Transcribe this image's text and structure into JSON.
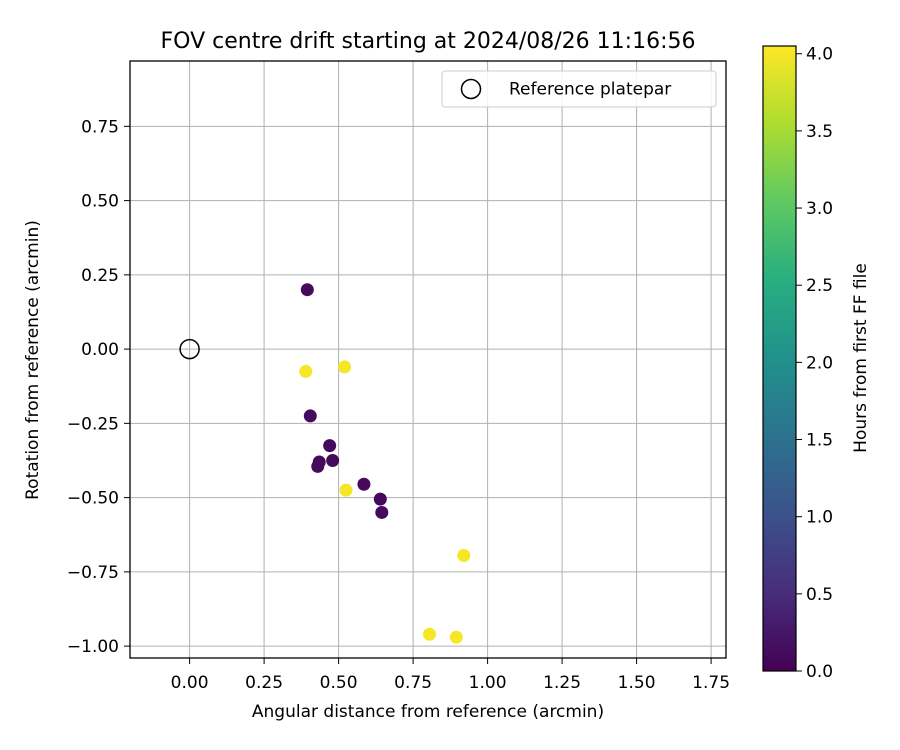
{
  "chart_data": {
    "type": "scatter",
    "title": "FOV centre drift starting at 2024/08/26 11:16:56",
    "xlabel": "Angular distance from reference (arcmin)",
    "ylabel": "Rotation from reference (arcmin)",
    "xlim": [
      -0.2,
      1.8
    ],
    "ylim": [
      -1.04,
      0.97
    ],
    "x_ticks": [
      0.0,
      0.25,
      0.5,
      0.75,
      1.0,
      1.25,
      1.5,
      1.75
    ],
    "x_tick_labels": [
      "0.00",
      "0.25",
      "0.50",
      "0.75",
      "1.00",
      "1.25",
      "1.50",
      "1.75"
    ],
    "y_ticks": [
      0.75,
      0.5,
      0.25,
      0.0,
      -0.25,
      -0.5,
      -0.75,
      -1.0
    ],
    "y_tick_labels": [
      "0.75",
      "0.50",
      "0.25",
      "0.00",
      "−0.25",
      "−0.50",
      "−0.75",
      "−1.00"
    ],
    "grid": true,
    "legend_position": "top-right",
    "legend": [
      {
        "label": "Reference platepar",
        "marker": "open-circle"
      }
    ],
    "reference_point": {
      "x": 0.0,
      "y": 0.0
    },
    "colorbar": {
      "label": "Hours from first FF file",
      "colormap": "viridis",
      "range": [
        0.0,
        4.05
      ],
      "ticks": [
        0.0,
        0.5,
        1.0,
        1.5,
        2.0,
        2.5,
        3.0,
        3.5,
        4.0
      ],
      "tick_labels": [
        "0.0",
        "0.5",
        "1.0",
        "1.5",
        "2.0",
        "2.5",
        "3.0",
        "3.5",
        "4.0"
      ]
    },
    "points": [
      {
        "x": 0.395,
        "y": 0.2,
        "hours": 0.1
      },
      {
        "x": 0.405,
        "y": -0.225,
        "hours": 0.1
      },
      {
        "x": 0.47,
        "y": -0.325,
        "hours": 0.1
      },
      {
        "x": 0.48,
        "y": -0.375,
        "hours": 0.1
      },
      {
        "x": 0.435,
        "y": -0.38,
        "hours": 0.1
      },
      {
        "x": 0.43,
        "y": -0.395,
        "hours": 0.1
      },
      {
        "x": 0.585,
        "y": -0.455,
        "hours": 0.1
      },
      {
        "x": 0.64,
        "y": -0.505,
        "hours": 0.1
      },
      {
        "x": 0.645,
        "y": -0.55,
        "hours": 0.1
      },
      {
        "x": 0.39,
        "y": -0.075,
        "hours": 4.0
      },
      {
        "x": 0.52,
        "y": -0.06,
        "hours": 4.0
      },
      {
        "x": 0.525,
        "y": -0.475,
        "hours": 4.0
      },
      {
        "x": 0.92,
        "y": -0.695,
        "hours": 4.0
      },
      {
        "x": 0.805,
        "y": -0.96,
        "hours": 4.0
      },
      {
        "x": 0.895,
        "y": -0.97,
        "hours": 4.0
      }
    ]
  }
}
